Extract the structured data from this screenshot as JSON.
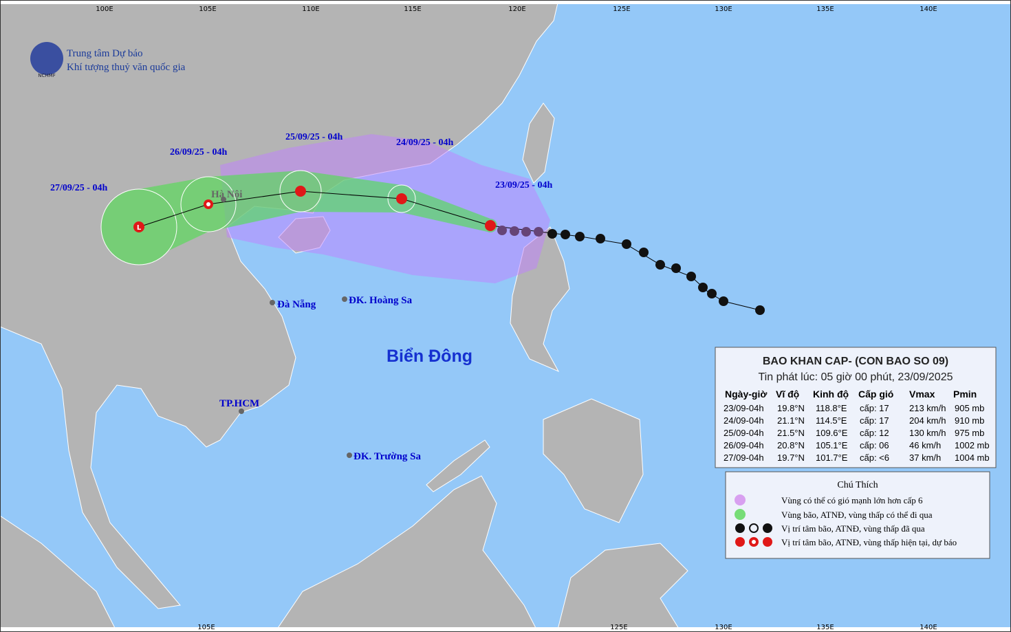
{
  "header": {
    "org_line1": "Trung tâm Dự báo",
    "org_line2": "Khí tượng thuỷ văn quốc gia",
    "logo_text": "NCHMF"
  },
  "longitudes_top": [
    "100E",
    "105E",
    "110E",
    "115E",
    "120E",
    "125E",
    "130E",
    "135E",
    "140E"
  ],
  "longitudes_bottom": [
    "105E",
    "125E",
    "130E",
    "135E",
    "140E"
  ],
  "track_labels": [
    "23/09/25 - 04h",
    "24/09/25 - 04h",
    "25/09/25 - 04h",
    "26/09/25 - 04h",
    "27/09/25 - 04h"
  ],
  "places": {
    "hanoi": "Hà Nội",
    "danang": "Đà Nẵng",
    "hoangsa": "ĐK. Hoàng Sa",
    "hcm": "TP.HCM",
    "truongsa": "ĐK. Trường Sa",
    "sea": "Biển Đông"
  },
  "bulletin": {
    "title": "BAO KHAN CAP- (CON BAO SO 09)",
    "issued": "Tin phát lúc: 05 giờ 00 phút, 23/09/2025",
    "columns": [
      "Ngày-giờ",
      "Vĩ độ",
      "Kinh độ",
      "Cấp gió",
      "Vmax",
      "Pmin"
    ],
    "rows": [
      [
        "23/09-04h",
        "19.8°N",
        "118.8°E",
        "cấp: 17",
        "213 km/h",
        "905 mb"
      ],
      [
        "24/09-04h",
        "21.1°N",
        "114.5°E",
        "cấp: 17",
        "204 km/h",
        "910 mb"
      ],
      [
        "25/09-04h",
        "21.5°N",
        "109.6°E",
        "cấp: 12",
        "130 km/h",
        "975 mb"
      ],
      [
        "26/09-04h",
        "20.8°N",
        "105.1°E",
        "cấp: 06",
        "46 km/h",
        "1002 mb"
      ],
      [
        "27/09-04h",
        "19.7°N",
        "101.7°E",
        "cấp: <6",
        "37 km/h",
        "1004 mb"
      ]
    ]
  },
  "legend": {
    "title": "Chú Thích",
    "items": [
      "Vùng có thể có gió mạnh lớn hơn cấp 6",
      "Vùng bão, ATNĐ, vùng thấp có thể đi qua",
      "Vị trí tâm bão, ATNĐ, vùng thấp đã qua",
      "Vị trí tâm bão, ATNĐ, vùng thấp hiện tại, dự báo"
    ]
  }
}
